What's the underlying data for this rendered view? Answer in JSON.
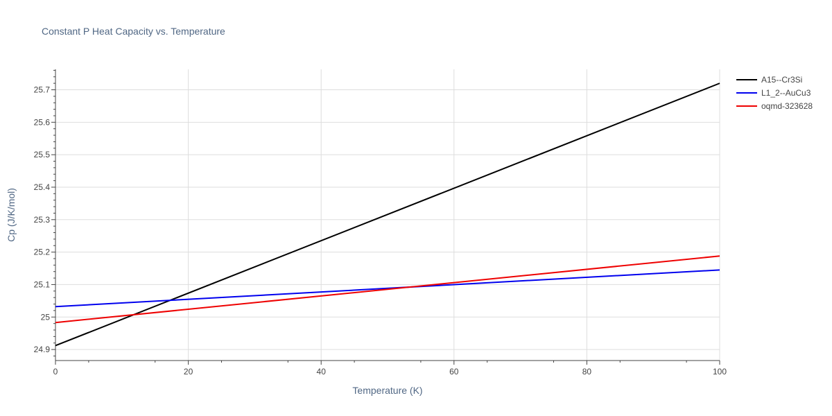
{
  "chart_data": {
    "type": "line",
    "title": "Constant P Heat Capacity vs. Temperature",
    "xlabel": "Temperature (K)",
    "ylabel": "Cp (J/K/mol)",
    "xlim": [
      0,
      100
    ],
    "ylim": [
      24.866,
      25.763
    ],
    "x_ticks": [
      0,
      20,
      40,
      60,
      80,
      100
    ],
    "x_tick_labels": [
      "0",
      "20",
      "40",
      "60",
      "80",
      "100"
    ],
    "y_ticks": [
      24.9,
      25.0,
      25.1,
      25.2,
      25.3,
      25.4,
      25.5,
      25.6,
      25.7
    ],
    "y_tick_labels": [
      "24.9",
      "25",
      "25.1",
      "25.2",
      "25.3",
      "25.4",
      "25.5",
      "25.6",
      "25.7"
    ],
    "grid": true,
    "legend_position": "top-right",
    "series": [
      {
        "name": "A15--Cr3Si",
        "color": "#000000",
        "x": [
          0,
          100
        ],
        "y": [
          24.912,
          25.72
        ]
      },
      {
        "name": "L1_2--AuCu3",
        "color": "#0000ee",
        "x": [
          0,
          100
        ],
        "y": [
          25.032,
          25.145
        ]
      },
      {
        "name": "oqmd-323628",
        "color": "#ee0000",
        "x": [
          0,
          100
        ],
        "y": [
          24.983,
          25.188
        ]
      }
    ]
  }
}
